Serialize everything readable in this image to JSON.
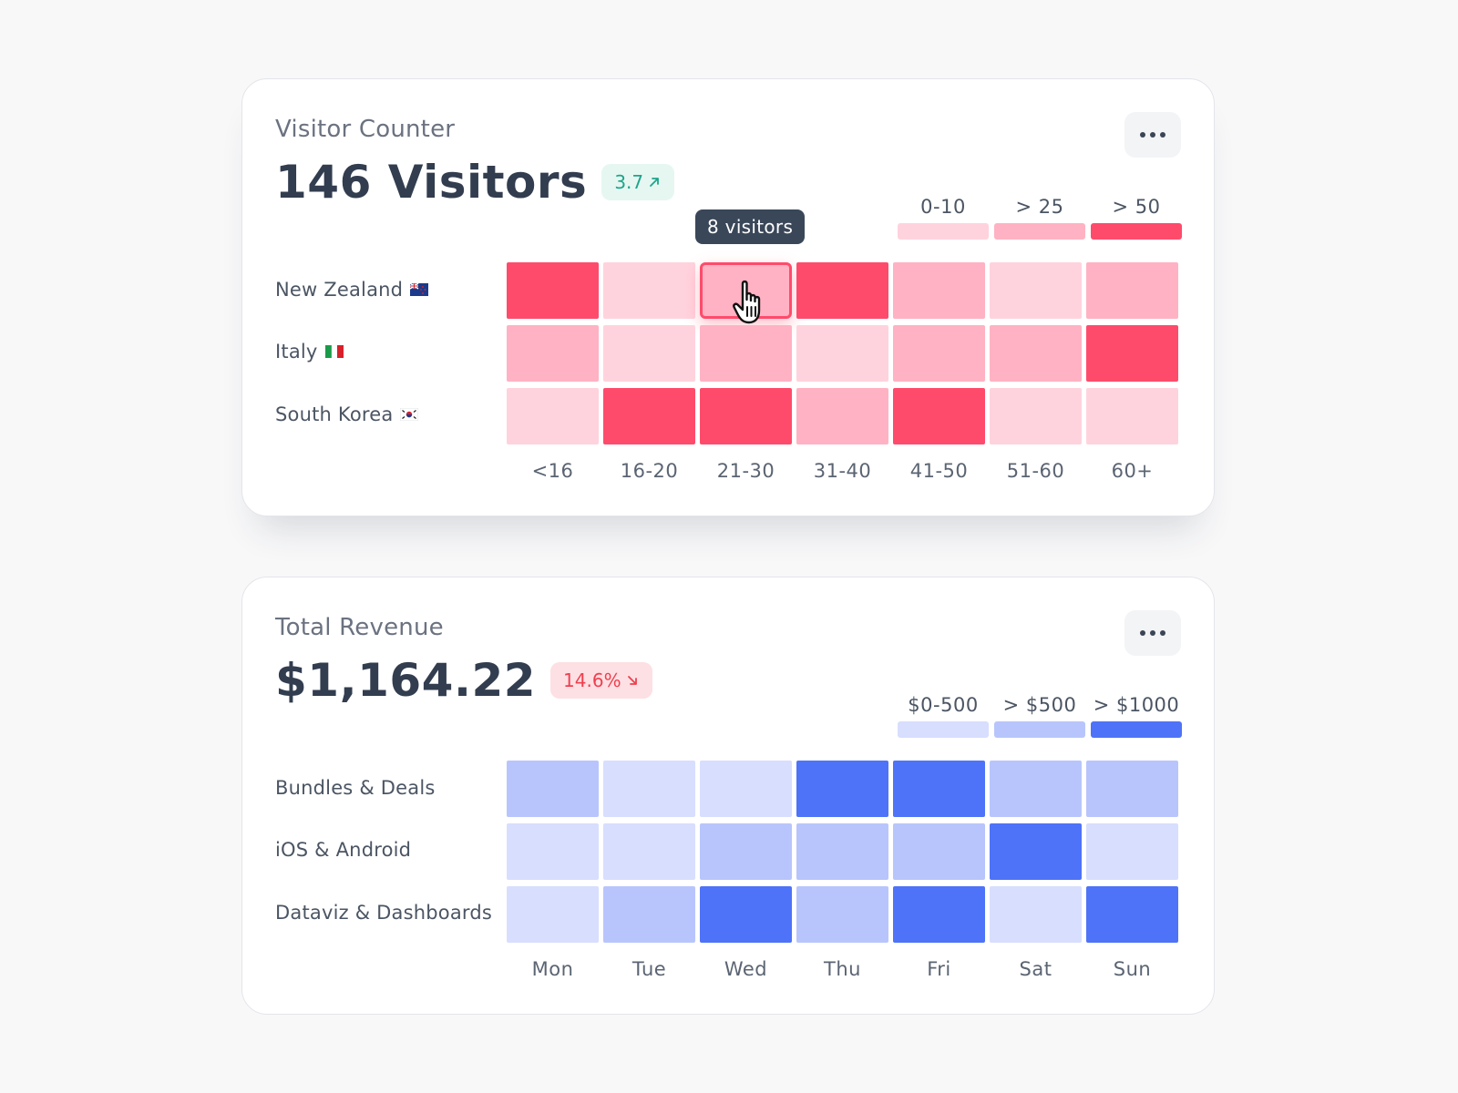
{
  "visitor_card": {
    "title": "Visitor Counter",
    "value": "146 Visitors",
    "change": "3.7",
    "change_direction": "up",
    "menu_icon": "more-dots-icon",
    "tooltip": "8 visitors",
    "hovered_cell": {
      "row": 0,
      "col": 2
    },
    "legend": [
      {
        "label": "0-10",
        "color": "#ffd3dd"
      },
      {
        "label": "> 25",
        "color": "#ffb2c3"
      },
      {
        "label": "> 50",
        "color": "#ff4b6b"
      }
    ],
    "rows": [
      {
        "label": "New Zealand",
        "flag": "new-zealand-flag-icon"
      },
      {
        "label": "Italy",
        "flag": "italy-flag-icon"
      },
      {
        "label": "South Korea",
        "flag": "south-korea-flag-icon"
      }
    ]
  },
  "revenue_card": {
    "title": "Total Revenue",
    "value": "$1,164.22",
    "change": "14.6%",
    "change_direction": "down",
    "menu_icon": "more-dots-icon",
    "legend": [
      {
        "label": "$0-500",
        "color": "#d8defe"
      },
      {
        "label": "> $500",
        "color": "#b8c5fc"
      },
      {
        "label": "> $1000",
        "color": "#4e73f8"
      }
    ],
    "rows": [
      {
        "label": "Bundles & Deals"
      },
      {
        "label": "iOS & Android"
      },
      {
        "label": "Dataviz & Dashboards"
      }
    ]
  },
  "chart_data": [
    {
      "type": "heatmap",
      "title": "Visitor Counter",
      "x": [
        "<16",
        "16-20",
        "21-30",
        "31-40",
        "41-50",
        "51-60",
        "60+"
      ],
      "y": [
        "New Zealand",
        "Italy",
        "South Korea"
      ],
      "levels": [
        "0-10",
        "> 25",
        "> 50"
      ],
      "values": [
        [
          2,
          0,
          1,
          2,
          1,
          0,
          1
        ],
        [
          1,
          0,
          1,
          0,
          1,
          1,
          2
        ],
        [
          0,
          2,
          2,
          1,
          2,
          0,
          0
        ]
      ]
    },
    {
      "type": "heatmap",
      "title": "Total Revenue",
      "x": [
        "Mon",
        "Tue",
        "Wed",
        "Thu",
        "Fri",
        "Sat",
        "Sun"
      ],
      "y": [
        "Bundles & Deals",
        "iOS & Android",
        "Dataviz & Dashboards"
      ],
      "levels": [
        "$0-500",
        "> $500",
        "> $1000"
      ],
      "values": [
        [
          1,
          0,
          0,
          2,
          2,
          1,
          1
        ],
        [
          0,
          0,
          1,
          1,
          1,
          2,
          0
        ],
        [
          0,
          1,
          2,
          1,
          2,
          0,
          2
        ]
      ]
    }
  ]
}
